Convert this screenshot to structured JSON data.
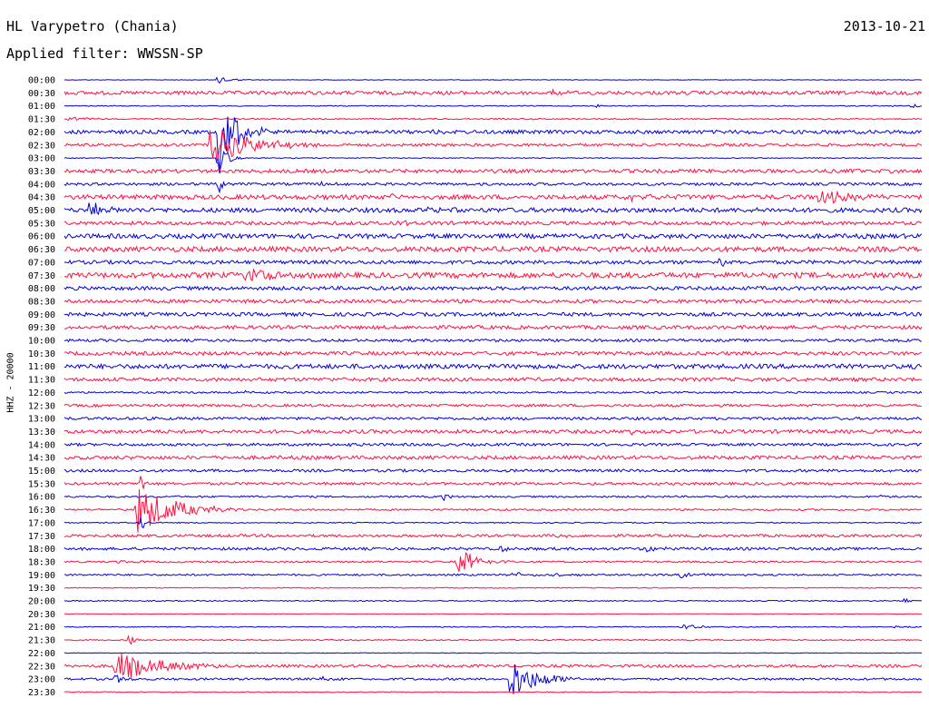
{
  "header": {
    "station": "HL Varypetro (Chania)",
    "date": "2013-10-21",
    "filter": "Applied filter: WWSSN-SP"
  },
  "chart_data": {
    "type": "line",
    "title": "HL Varypetro (Chania)",
    "ylabel": "HHZ - 20000",
    "colors": [
      "#0000dd",
      "#ff1040"
    ],
    "grid": false,
    "rows": [
      "00:00",
      "00:30",
      "01:00",
      "01:30",
      "02:00",
      "02:30",
      "03:00",
      "03:30",
      "04:00",
      "04:30",
      "05:00",
      "05:30",
      "06:00",
      "06:30",
      "07:00",
      "07:30",
      "08:00",
      "08:30",
      "09:00",
      "09:30",
      "10:00",
      "10:30",
      "11:00",
      "11:30",
      "12:00",
      "12:30",
      "13:00",
      "13:30",
      "14:00",
      "14:30",
      "15:00",
      "15:30",
      "16:00",
      "16:30",
      "17:00",
      "17:30",
      "18:00",
      "18:30",
      "19:00",
      "19:30",
      "20:00",
      "20:30",
      "21:00",
      "21:30",
      "22:00",
      "22:30",
      "23:00",
      "23:30"
    ],
    "row_noise": [
      0.3,
      2,
      0.5,
      0.7,
      2,
      1.5,
      0.5,
      2,
      1.5,
      2.5,
      2.5,
      2,
      2.5,
      2.8,
      2,
      3,
      2,
      2,
      2,
      2,
      1.5,
      2,
      2.5,
      2,
      1,
      1.5,
      1.5,
      2,
      1.5,
      2,
      1.5,
      1.5,
      1,
      1,
      0.6,
      1.5,
      1.5,
      1,
      1,
      0.5,
      0.6,
      0.3,
      0.5,
      0.7,
      0.3,
      1.5,
      1.2,
      0.5
    ],
    "events": [
      {
        "row": 0,
        "t": 0.18,
        "amp": 6,
        "dur": 0.012
      },
      {
        "row": 1,
        "t": 0.57,
        "amp": 3,
        "dur": 0.015
      },
      {
        "row": 2,
        "t": 0.62,
        "amp": 2,
        "dur": 0.005
      },
      {
        "row": 2,
        "t": 0.985,
        "amp": 2,
        "dur": 0.02
      },
      {
        "row": 3,
        "t": 0.005,
        "amp": 3,
        "dur": 0.02
      },
      {
        "row": 4,
        "t": 0.18,
        "amp": 45,
        "dur": 0.02
      },
      {
        "row": 4,
        "t": 0.43,
        "amp": 2,
        "dur": 0.01
      },
      {
        "row": 5,
        "t": 0.17,
        "amp": 22,
        "dur": 0.045
      },
      {
        "row": 6,
        "t": 0.18,
        "amp": 18,
        "dur": 0.01
      },
      {
        "row": 7,
        "t": 0.92,
        "amp": 2,
        "dur": 0.015
      },
      {
        "row": 8,
        "t": 0.3,
        "amp": 3,
        "dur": 0.01
      },
      {
        "row": 8,
        "t": 0.18,
        "amp": 12,
        "dur": 0.005
      },
      {
        "row": 9,
        "t": 0.88,
        "amp": 8,
        "dur": 0.03
      },
      {
        "row": 9,
        "t": 0.65,
        "amp": 3,
        "dur": 0.03
      },
      {
        "row": 9,
        "t": 0.38,
        "amp": 3,
        "dur": 0.01
      },
      {
        "row": 10,
        "t": 0.03,
        "amp": 10,
        "dur": 0.012
      },
      {
        "row": 10,
        "t": 0.42,
        "amp": 3,
        "dur": 0.02
      },
      {
        "row": 11,
        "t": 0.38,
        "amp": 3,
        "dur": 0.02
      },
      {
        "row": 14,
        "t": 0.765,
        "amp": 12,
        "dur": 0.003
      },
      {
        "row": 15,
        "t": 0.21,
        "amp": 10,
        "dur": 0.03
      },
      {
        "row": 24,
        "t": 0.21,
        "amp": 2,
        "dur": 0.01
      },
      {
        "row": 27,
        "t": 0.66,
        "amp": 3,
        "dur": 0.02
      },
      {
        "row": 28,
        "t": 0.33,
        "amp": 3,
        "dur": 0.01
      },
      {
        "row": 31,
        "t": 0.09,
        "amp": 14,
        "dur": 0.004
      },
      {
        "row": 32,
        "t": 0.44,
        "amp": 4,
        "dur": 0.01
      },
      {
        "row": 32,
        "t": 0.95,
        "amp": 2,
        "dur": 0.005
      },
      {
        "row": 33,
        "t": 0.085,
        "amp": 28,
        "dur": 0.04
      },
      {
        "row": 34,
        "t": 0.09,
        "amp": 12,
        "dur": 0.004
      },
      {
        "row": 35,
        "t": 0.57,
        "amp": 5,
        "dur": 0.01
      },
      {
        "row": 36,
        "t": 0.51,
        "amp": 5,
        "dur": 0.012
      },
      {
        "row": 36,
        "t": 0.68,
        "amp": 5,
        "dur": 0.012
      },
      {
        "row": 37,
        "t": 0.46,
        "amp": 16,
        "dur": 0.02
      },
      {
        "row": 37,
        "t": 0.065,
        "amp": 3,
        "dur": 0.01
      },
      {
        "row": 38,
        "t": 0.52,
        "amp": 3,
        "dur": 0.05
      },
      {
        "row": 38,
        "t": 0.72,
        "amp": 6,
        "dur": 0.012
      },
      {
        "row": 40,
        "t": 0.98,
        "amp": 3,
        "dur": 0.01
      },
      {
        "row": 42,
        "t": 0.72,
        "amp": 3,
        "dur": 0.02
      },
      {
        "row": 42,
        "t": 0.96,
        "amp": 2,
        "dur": 0.04
      },
      {
        "row": 43,
        "t": 0.075,
        "amp": 8,
        "dur": 0.004
      },
      {
        "row": 45,
        "t": 0.06,
        "amp": 16,
        "dur": 0.05
      },
      {
        "row": 46,
        "t": 0.52,
        "amp": 24,
        "dur": 0.03
      },
      {
        "row": 46,
        "t": 0.3,
        "amp": 3,
        "dur": 0.015
      },
      {
        "row": 46,
        "t": 0.06,
        "amp": 6,
        "dur": 0.01
      }
    ]
  }
}
